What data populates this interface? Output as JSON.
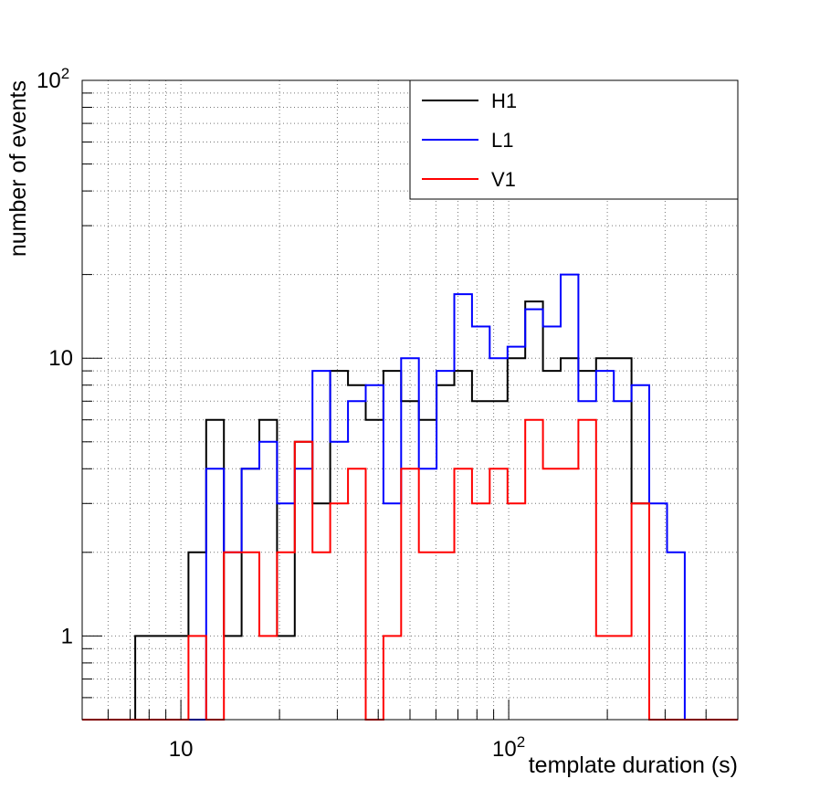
{
  "chart_data": {
    "type": "histogram",
    "xlabel": "template duration (s)",
    "ylabel": "number of events",
    "x_scale": "log",
    "y_scale": "log",
    "xlim": [
      5,
      500
    ],
    "ylim": [
      0.5,
      100
    ],
    "grid": true,
    "grid_style": "dotted",
    "legend_position": "top-right",
    "x_tick_labels": [
      {
        "value": 10,
        "label": "10"
      },
      {
        "value": 100,
        "label": "10",
        "sup": "2"
      }
    ],
    "y_tick_labels": [
      {
        "value": 1,
        "label": "1"
      },
      {
        "value": 10,
        "label": "10"
      },
      {
        "value": 100,
        "label": "10",
        "sup": "2"
      }
    ],
    "bin_edges": [
      5.0,
      5.66,
      6.41,
      7.26,
      8.22,
      9.31,
      10.55,
      11.95,
      13.53,
      15.32,
      17.35,
      19.65,
      22.26,
      25.21,
      28.55,
      32.34,
      36.63,
      41.48,
      46.98,
      53.21,
      60.27,
      68.26,
      77.31,
      87.55,
      99.16,
      112.31,
      127.2,
      144.06,
      163.16,
      184.79,
      209.29,
      237.04,
      268.47,
      304.07,
      344.38,
      390.04,
      441.76,
      500.0
    ],
    "series": [
      {
        "name": "H1",
        "color": "#000000",
        "values": [
          0,
          0,
          0,
          1,
          1,
          1,
          2,
          6,
          1,
          4,
          6,
          1,
          5,
          3,
          9,
          8,
          6,
          9,
          7,
          6,
          8,
          9,
          7,
          7,
          10,
          16,
          9,
          10,
          9,
          10,
          10,
          3,
          0,
          0,
          0,
          0,
          0
        ]
      },
      {
        "name": "L1",
        "color": "#0000ff",
        "values": [
          0,
          0,
          0,
          0,
          0,
          0,
          0,
          4,
          2,
          4,
          5,
          3,
          4,
          9,
          5,
          7,
          8,
          3,
          10,
          4,
          9,
          17,
          13,
          10,
          11,
          15,
          13,
          20,
          7,
          9,
          7,
          8,
          3,
          2,
          0,
          0,
          0
        ]
      },
      {
        "name": "V1",
        "color": "#ff0000",
        "values": [
          0,
          0,
          0,
          0,
          0,
          0,
          1,
          0,
          2,
          2,
          1,
          2,
          5,
          2,
          3,
          4,
          0,
          1,
          4,
          2,
          2,
          4,
          3,
          4,
          3,
          6,
          4,
          4,
          6,
          1,
          1,
          3,
          0,
          0,
          0,
          0,
          0
        ]
      }
    ]
  }
}
